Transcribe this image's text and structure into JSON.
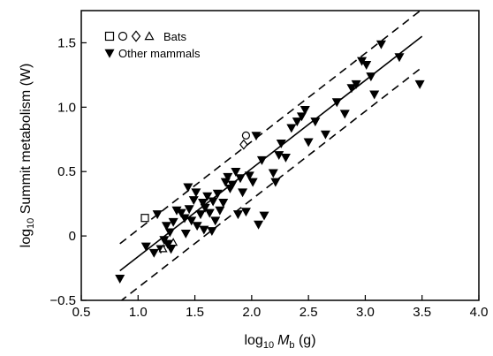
{
  "chart_data": {
    "type": "scatter",
    "xlabel": {
      "prefix": "log",
      "sub": "10",
      "var": "M",
      "var_sub": "b",
      "unit": " (g)"
    },
    "ylabel": {
      "prefix": "log",
      "sub": "10",
      "text": " Summit metabolism (W)"
    },
    "xlim": [
      0.5,
      4.0
    ],
    "ylim": [
      -0.5,
      1.75
    ],
    "x_ticks": [
      "0.5",
      "1.0",
      "1.5",
      "2.0",
      "2.5",
      "3.0",
      "3.5",
      "4.0"
    ],
    "y_ticks": [
      "−0.5",
      "0",
      "0.5",
      "1.0",
      "1.5"
    ],
    "legend": {
      "position": "top-left",
      "entries": [
        {
          "label": "Bats",
          "symbols": [
            "square",
            "circle",
            "diamond",
            "triangle-up"
          ],
          "fill": "none"
        },
        {
          "label": "Other mammals",
          "symbols": [
            "triangle-down"
          ],
          "fill": "#000000"
        }
      ]
    },
    "series": [
      {
        "name": "Bats",
        "points": [
          {
            "x": 1.06,
            "y": 0.14,
            "marker": "square"
          },
          {
            "x": 1.95,
            "y": 0.78,
            "marker": "circle"
          },
          {
            "x": 1.93,
            "y": 0.71,
            "marker": "diamond"
          },
          {
            "x": 1.31,
            "y": -0.05,
            "marker": "triangle-up"
          },
          {
            "x": 1.22,
            "y": -0.1,
            "marker": "triangle-up"
          }
        ]
      },
      {
        "name": "Other mammals",
        "marker": "triangle-down",
        "points": [
          [
            0.84,
            -0.33
          ],
          [
            1.07,
            -0.08
          ],
          [
            1.14,
            -0.13
          ],
          [
            1.17,
            0.17
          ],
          [
            1.2,
            -0.1
          ],
          [
            1.23,
            -0.03
          ],
          [
            1.26,
            -0.06
          ],
          [
            1.28,
            0.03
          ],
          [
            1.25,
            0.08
          ],
          [
            1.29,
            -0.1
          ],
          [
            1.31,
            0.11
          ],
          [
            1.34,
            0.2
          ],
          [
            1.38,
            0.18
          ],
          [
            1.41,
            0.14
          ],
          [
            1.42,
            0.02
          ],
          [
            1.45,
            0.21
          ],
          [
            1.47,
            0.12
          ],
          [
            1.49,
            0.28
          ],
          [
            1.44,
            0.38
          ],
          [
            1.51,
            0.34
          ],
          [
            1.52,
            0.08
          ],
          [
            1.55,
            0.17
          ],
          [
            1.57,
            0.26
          ],
          [
            1.59,
            0.22
          ],
          [
            1.61,
            0.31
          ],
          [
            1.58,
            0.05
          ],
          [
            1.63,
            0.18
          ],
          [
            1.65,
            0.04
          ],
          [
            1.66,
            0.27
          ],
          [
            1.68,
            0.12
          ],
          [
            1.7,
            0.33
          ],
          [
            1.72,
            0.2
          ],
          [
            1.75,
            0.26
          ],
          [
            1.77,
            0.42
          ],
          [
            1.79,
            0.46
          ],
          [
            1.81,
            0.37
          ],
          [
            1.83,
            0.4
          ],
          [
            1.86,
            0.5
          ],
          [
            1.88,
            0.17
          ],
          [
            1.9,
            0.45
          ],
          [
            1.92,
            0.34
          ],
          [
            1.95,
            0.19
          ],
          [
            1.98,
            0.47
          ],
          [
            2.01,
            0.42
          ],
          [
            2.04,
            0.78
          ],
          [
            2.06,
            0.09
          ],
          [
            2.09,
            0.59
          ],
          [
            2.11,
            0.16
          ],
          [
            2.19,
            0.49
          ],
          [
            2.21,
            0.42
          ],
          [
            2.24,
            0.63
          ],
          [
            2.26,
            0.72
          ],
          [
            2.3,
            0.61
          ],
          [
            2.35,
            0.84
          ],
          [
            2.4,
            0.89
          ],
          [
            2.44,
            0.93
          ],
          [
            2.47,
            0.98
          ],
          [
            2.5,
            0.73
          ],
          [
            2.56,
            0.89
          ],
          [
            2.65,
            0.79
          ],
          [
            2.75,
            1.04
          ],
          [
            2.82,
            0.95
          ],
          [
            2.88,
            1.15
          ],
          [
            2.92,
            1.18
          ],
          [
            2.97,
            1.36
          ],
          [
            3.01,
            1.33
          ],
          [
            3.05,
            1.24
          ],
          [
            3.08,
            1.1
          ],
          [
            3.14,
            1.49
          ],
          [
            3.3,
            1.39
          ],
          [
            3.48,
            1.18
          ]
        ]
      }
    ],
    "lines": [
      {
        "style": "solid",
        "x": [
          0.84,
          3.5
        ],
        "y": [
          -0.27,
          1.55
        ]
      },
      {
        "style": "dashed",
        "x": [
          0.84,
          3.5
        ],
        "y": [
          -0.06,
          1.76
        ]
      },
      {
        "style": "dashed",
        "x": [
          0.84,
          3.5
        ],
        "y": [
          -0.51,
          1.31
        ]
      }
    ]
  }
}
